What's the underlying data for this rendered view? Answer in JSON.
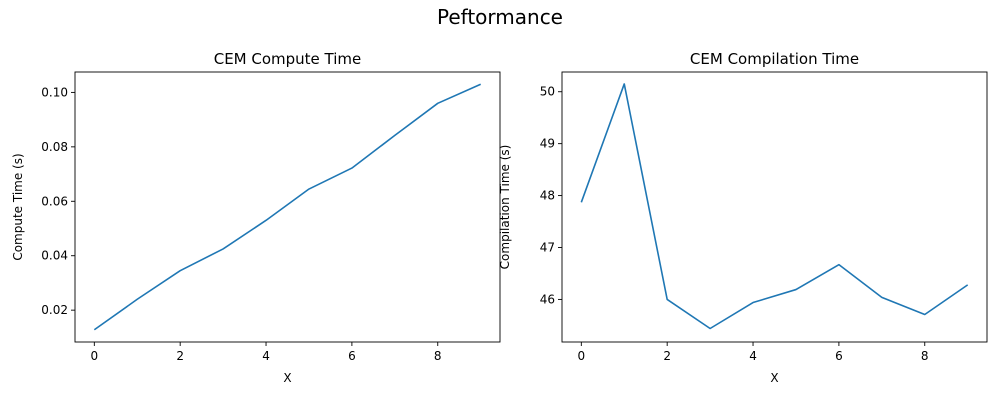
{
  "suptitle": "Peftormance",
  "line_color": "#1f77b4",
  "chart_data": [
    {
      "type": "line",
      "title": "CEM Compute Time",
      "xlabel": "X",
      "ylabel": "Compute Time (s)",
      "x": [
        0,
        1,
        2,
        3,
        4,
        5,
        6,
        7,
        8,
        9
      ],
      "values": [
        0.0128,
        0.024,
        0.0345,
        0.0425,
        0.053,
        0.0645,
        0.0722,
        0.0842,
        0.096,
        0.103
      ],
      "xlim": [
        -0.45,
        9.45
      ],
      "ylim": [
        0.0083,
        0.1075
      ],
      "xticks": [
        0,
        2,
        4,
        6,
        8
      ],
      "xtick_labels": [
        "0",
        "2",
        "4",
        "6",
        "8"
      ],
      "yticks": [
        0.02,
        0.04,
        0.06,
        0.08,
        0.1
      ],
      "ytick_labels": [
        "0.02",
        "0.04",
        "0.06",
        "0.08",
        "0.10"
      ],
      "grid": false
    },
    {
      "type": "line",
      "title": "CEM Compilation Time",
      "xlabel": "X",
      "ylabel": "Compilation Time (s)",
      "x": [
        0,
        1,
        2,
        3,
        4,
        5,
        6,
        7,
        8,
        9
      ],
      "values": [
        47.87,
        50.15,
        46.0,
        45.44,
        45.94,
        46.19,
        46.67,
        46.04,
        45.71,
        46.28
      ],
      "xlim": [
        -0.45,
        9.45
      ],
      "ylim": [
        45.18,
        50.38
      ],
      "xticks": [
        0,
        2,
        4,
        6,
        8
      ],
      "xtick_labels": [
        "0",
        "2",
        "4",
        "6",
        "8"
      ],
      "yticks": [
        46,
        47,
        48,
        49,
        50
      ],
      "ytick_labels": [
        "46",
        "47",
        "48",
        "49",
        "50"
      ],
      "grid": false
    }
  ]
}
